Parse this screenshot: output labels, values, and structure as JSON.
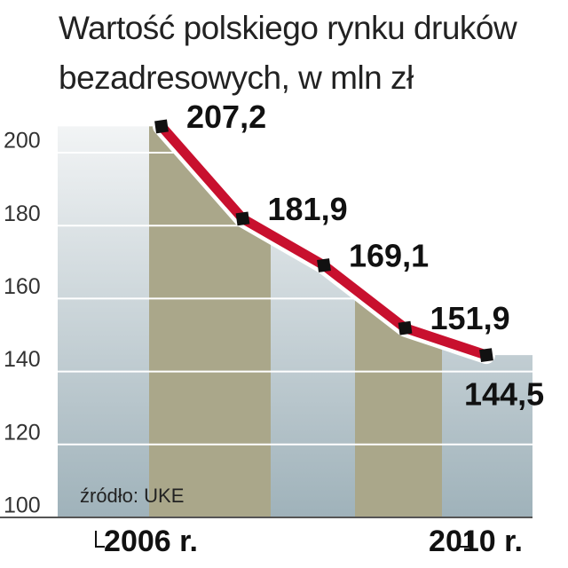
{
  "chart_data": {
    "type": "line",
    "title": "Wartość polskiego rynku druków bezadresowych, w mln zł",
    "source": "źródło: UKE",
    "categories": [
      "2006 r.",
      null,
      null,
      null,
      "2010 r."
    ],
    "values": [
      207.2,
      181.9,
      169.1,
      151.9,
      144.5
    ],
    "value_labels": [
      "207,2",
      "181,9",
      "169,1",
      "151,9",
      "144,5"
    ],
    "color": "#c8102e",
    "ylim": [
      100,
      210
    ],
    "yticks": [
      100,
      120,
      140,
      160,
      180,
      200
    ],
    "grid": true
  }
}
